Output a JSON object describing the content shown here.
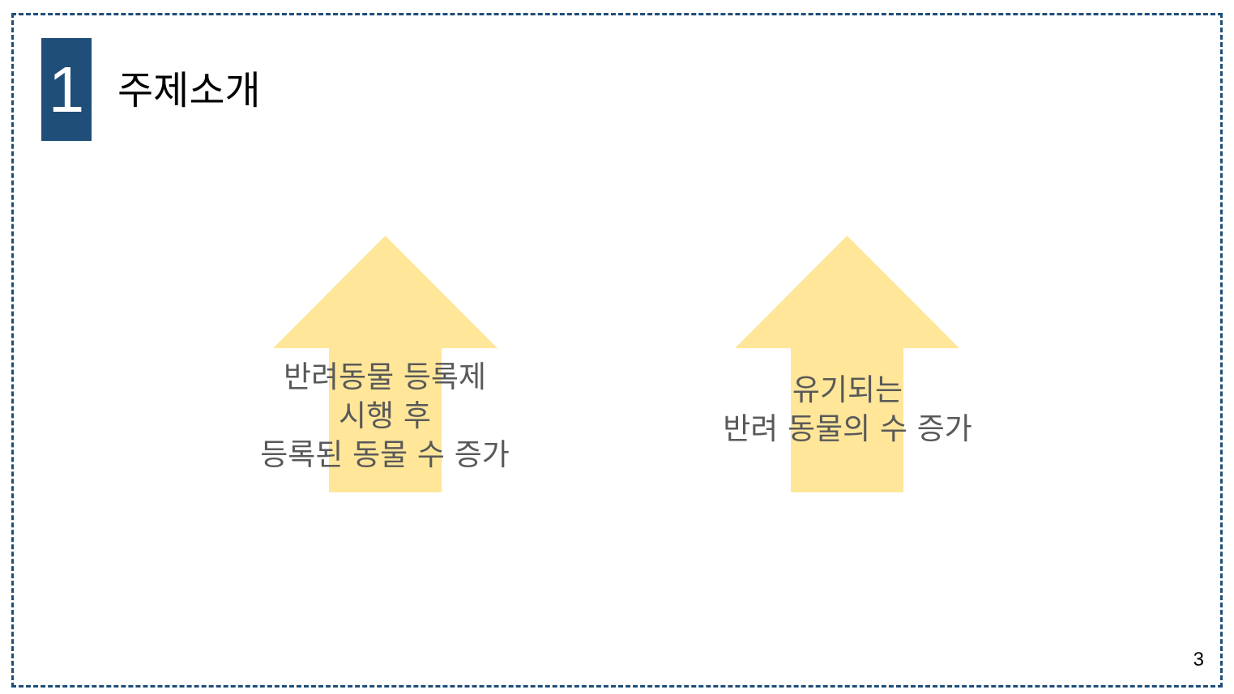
{
  "slide": {
    "section_number": "1",
    "title": "주제소개",
    "page_number": "3"
  },
  "arrows": [
    {
      "icon": "up-arrow-icon",
      "color": "#FFE699",
      "lines": [
        "반려동물 등록제",
        "시행 후",
        "등록된 동물 수 증가"
      ]
    },
    {
      "icon": "up-arrow-icon",
      "color": "#FFE699",
      "lines": [
        "유기되는",
        "반려 동물의 수 증가"
      ]
    }
  ],
  "colors": {
    "accent": "#1F4E79",
    "arrow": "#FFE699",
    "caption_text": "#595959"
  }
}
